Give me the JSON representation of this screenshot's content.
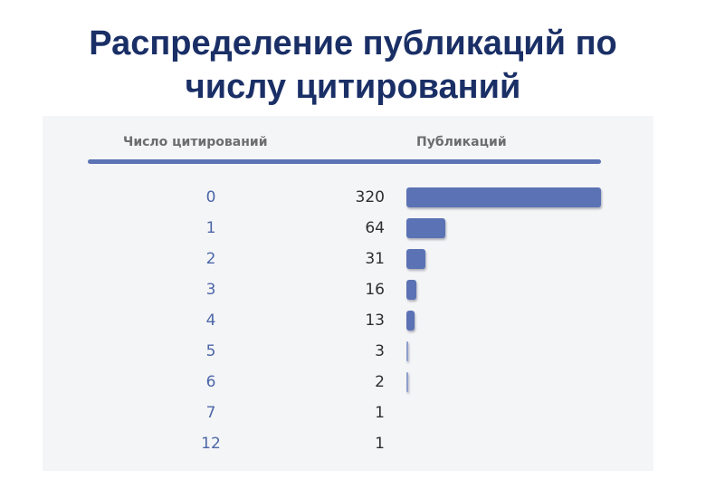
{
  "slide": {
    "title_line1": "Распределение публикаций по",
    "title_line2": "числу цитирований"
  },
  "colors": {
    "title": "#1a2f66",
    "bar": "#5b73b4",
    "label": "#4c66a8",
    "panel": "#f4f5f7"
  },
  "chart_data": {
    "type": "bar",
    "orientation": "horizontal",
    "xlabel": "Публикаций",
    "ylabel": "Число цитирований",
    "categories": [
      "0",
      "1",
      "2",
      "3",
      "4",
      "5",
      "6",
      "7",
      "12"
    ],
    "values": [
      320,
      64,
      31,
      16,
      13,
      3,
      2,
      1,
      1
    ],
    "value_labels": [
      "320",
      "64",
      "31",
      "16",
      "13",
      "3",
      "2",
      "1",
      "1"
    ],
    "xlim": [
      0,
      320
    ],
    "grid": false,
    "legend": "none"
  }
}
